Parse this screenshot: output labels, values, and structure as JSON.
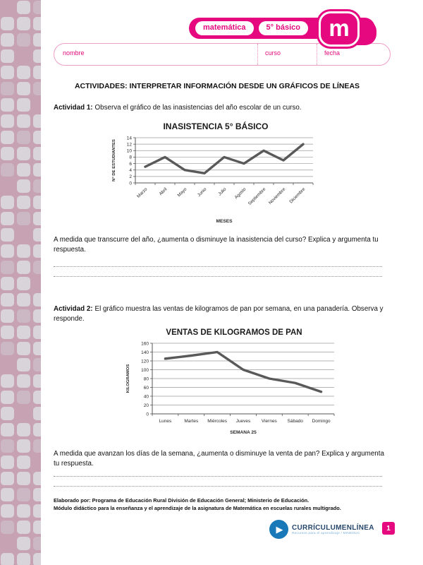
{
  "header": {
    "subject": "matemática",
    "grade": "5° básico",
    "logo_letter": "m",
    "field_nombre": "nombre",
    "field_curso": "curso",
    "field_fecha": "fecha"
  },
  "main_title": "ACTIVIDADES: INTERPRETAR INFORMACIÓN DESDE UN GRÁFICOS DE LÍNEAS",
  "activity1": {
    "label": "Actividad 1:",
    "text": "Observa el gráfico de las inasistencias del año escolar de un curso.",
    "question": "A medida que transcurre del año, ¿aumenta o disminuye la inasistencia del curso? Explica y argumenta tu respuesta."
  },
  "activity2": {
    "label": "Actividad 2:",
    "text": "El gráfico muestra las ventas de kilogramos de pan por semana, en una panadería. Observa y responde.",
    "question": "A medida que avanzan los días de la semana, ¿aumenta o disminuye la venta de pan? Explica y argumenta tu respuesta."
  },
  "chart_data": [
    {
      "type": "line",
      "title": "INASISTENCIA 5° BÁSICO",
      "categories": [
        "Marzo",
        "Abril",
        "Mayo",
        "Junio",
        "Julio",
        "Agosto",
        "Septiembre",
        "Noviembre",
        "Diciembre"
      ],
      "values": [
        5,
        8,
        4,
        3,
        8,
        6,
        10,
        7,
        12
      ],
      "xlabel": "MESES",
      "ylabel": "N° DE ESTUDIANTES",
      "ylim": [
        0,
        14
      ],
      "ystep": 2,
      "grid": true,
      "legend": "none",
      "line_color": "#595959"
    },
    {
      "type": "line",
      "title": "VENTAS DE KILOGRAMOS DE PAN",
      "categories": [
        "Lunes",
        "Martes",
        "Miércoles",
        "Jueves",
        "Viernes",
        "Sábado",
        "Domingo"
      ],
      "values": [
        125,
        132,
        140,
        100,
        80,
        70,
        50
      ],
      "xlabel": "SEMANA 25",
      "ylabel": "KILOGRAMOS",
      "ylim": [
        0,
        160
      ],
      "ystep": 20,
      "grid": true,
      "legend": "none",
      "line_color": "#595959"
    }
  ],
  "footer": {
    "credit_line1": "Elaborado por: Programa de Educación Rural División de Educación General; Ministerio de Educación.",
    "credit_line2": "Módulo didáctico para la enseñanza y el aprendizaje de la asignatura de Matemática en escuelas rurales multigrado.",
    "brand": "CURRÍCULUMENLÍNEA",
    "brand_subtitle": "Recursos para el aprendizaje / MINEDUC",
    "page_number": "1"
  },
  "colors": {
    "magenta": "#e5087e",
    "band": "#c7a2b3",
    "band_cell": "#d9d3da",
    "chart_line": "#595959",
    "brand_blue": "#1878b8",
    "brand_navy": "#26476b"
  }
}
